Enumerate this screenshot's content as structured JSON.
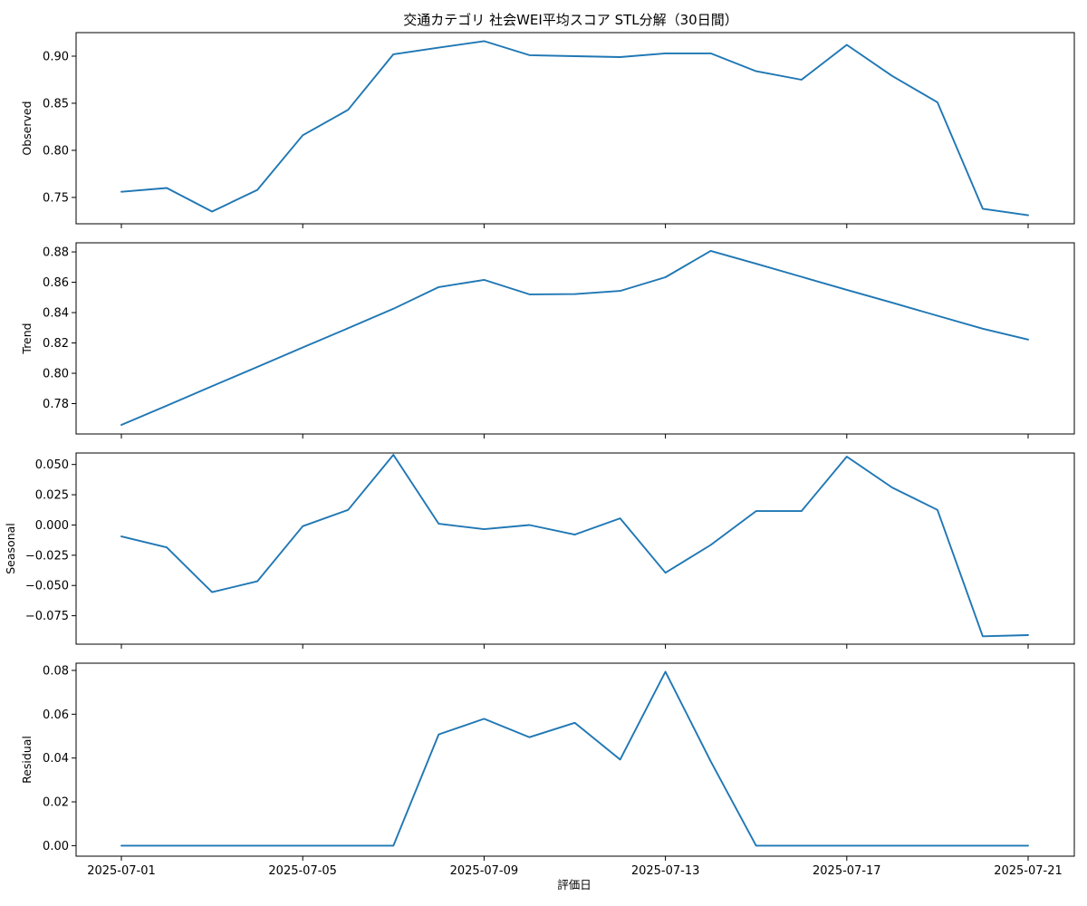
{
  "chart_data": {
    "type": "line",
    "title": "交通カテゴリ 社会WEI平均スコア STL分解（30日間）",
    "xlabel": "評価日",
    "line_color": "#1f77b4",
    "x": [
      "2025-07-01",
      "2025-07-02",
      "2025-07-03",
      "2025-07-04",
      "2025-07-05",
      "2025-07-06",
      "2025-07-07",
      "2025-07-08",
      "2025-07-09",
      "2025-07-10",
      "2025-07-11",
      "2025-07-12",
      "2025-07-13",
      "2025-07-14",
      "2025-07-15",
      "2025-07-16",
      "2025-07-17",
      "2025-07-18",
      "2025-07-19",
      "2025-07-20",
      "2025-07-21"
    ],
    "x_ticks": [
      "2025-07-01",
      "2025-07-05",
      "2025-07-09",
      "2025-07-13",
      "2025-07-17",
      "2025-07-21"
    ],
    "panels": [
      {
        "ylabel": "Observed",
        "ylim": [
          0.722,
          0.925
        ],
        "yticks": [
          0.75,
          0.8,
          0.85,
          0.9
        ],
        "ytick_labels": [
          "0.75",
          "0.80",
          "0.85",
          "0.90"
        ],
        "values": [
          0.756,
          0.76,
          0.735,
          0.758,
          0.816,
          0.843,
          0.902,
          0.909,
          0.916,
          0.901,
          0.9,
          0.899,
          0.903,
          0.903,
          0.884,
          0.875,
          0.912,
          0.879,
          0.851,
          0.738,
          0.731
        ]
      },
      {
        "ylabel": "Trend",
        "ylim": [
          0.76,
          0.886
        ],
        "yticks": [
          0.78,
          0.8,
          0.82,
          0.84,
          0.86,
          0.88
        ],
        "ytick_labels": [
          "0.78",
          "0.80",
          "0.82",
          "0.84",
          "0.86",
          "0.88"
        ],
        "values": [
          0.766,
          0.7787,
          0.7915,
          0.8042,
          0.817,
          0.8297,
          0.8425,
          0.8568,
          0.8616,
          0.852,
          0.8522,
          0.8543,
          0.8633,
          0.8807,
          0.8722,
          0.8636,
          0.855,
          0.8465,
          0.8379,
          0.8294,
          0.8222
        ]
      },
      {
        "ylabel": "Seasonal",
        "ylim": [
          -0.0985,
          0.0595
        ],
        "yticks": [
          -0.075,
          -0.05,
          -0.025,
          0.0,
          0.025,
          0.05
        ],
        "ytick_labels": [
          "−0.075",
          "−0.050",
          "−0.025",
          "0.000",
          "0.025",
          "0.050"
        ],
        "values": [
          -0.0095,
          -0.0185,
          -0.0555,
          -0.0465,
          -0.001,
          0.0125,
          0.058,
          0.001,
          -0.0035,
          0.0,
          -0.008,
          0.0055,
          -0.0395,
          -0.0165,
          0.0115,
          0.0115,
          0.0565,
          0.031,
          0.0125,
          -0.092,
          -0.091
        ]
      },
      {
        "ylabel": "Residual",
        "ylim": [
          -0.0048,
          0.0833
        ],
        "yticks": [
          0.0,
          0.02,
          0.04,
          0.06,
          0.08
        ],
        "ytick_labels": [
          "0.00",
          "0.02",
          "0.04",
          "0.06",
          "0.08"
        ],
        "values": [
          0.0,
          0.0,
          0.0,
          0.0,
          0.0,
          0.0,
          0.0,
          0.0508,
          0.0579,
          0.0495,
          0.0561,
          0.0393,
          0.0794,
          0.0385,
          0.0,
          0.0,
          0.0,
          0.0,
          0.0,
          0.0,
          0.0
        ]
      }
    ]
  }
}
